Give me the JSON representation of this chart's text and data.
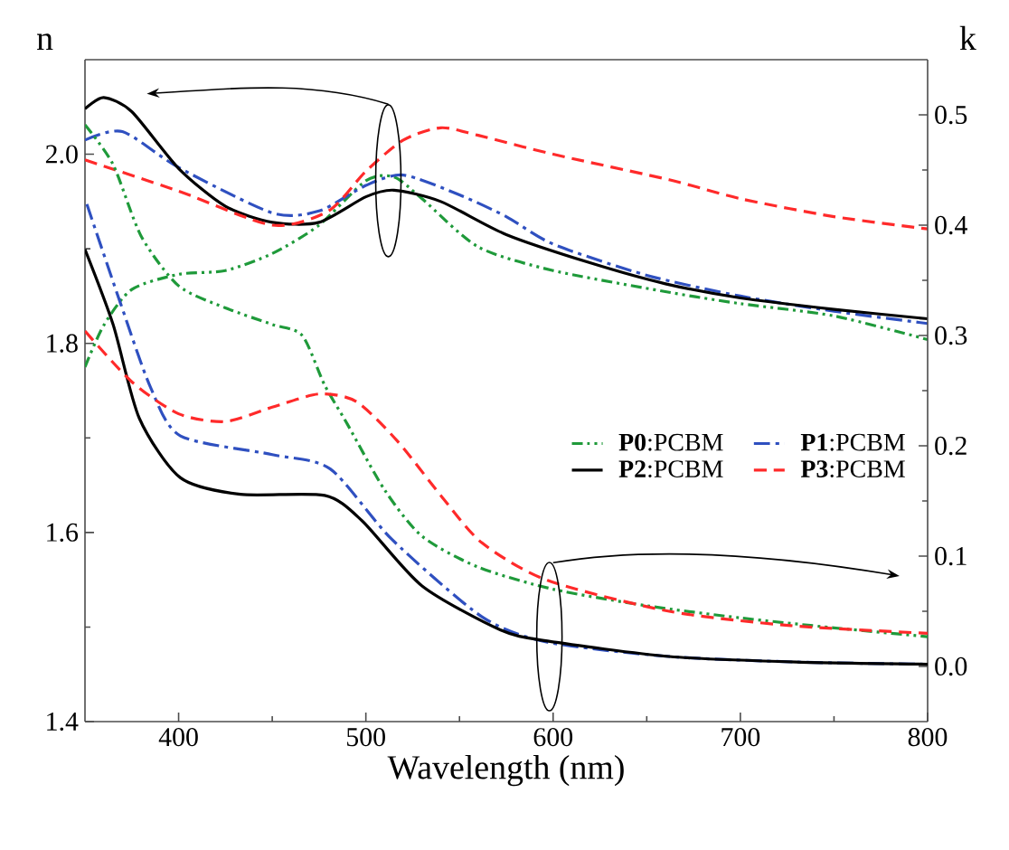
{
  "chart_data": {
    "type": "line",
    "xlabel": "Wavelength (nm)",
    "ylabel": "n",
    "y2label": "k",
    "xlim": [
      350,
      800
    ],
    "xticks": [
      400,
      500,
      600,
      700,
      800
    ],
    "ylim": [
      1.4,
      2.1
    ],
    "yticks": [
      {
        "value": 1.4,
        "label": "1.4"
      },
      {
        "value": 1.6,
        "label": "1.6"
      },
      {
        "value": 1.8,
        "label": "1.8"
      },
      {
        "value": 2.0,
        "label": "2.0"
      }
    ],
    "y2lim": [
      -0.05,
      0.55
    ],
    "y2ticks": [
      {
        "value": 0.0,
        "label": "0.0"
      },
      {
        "value": 0.1,
        "label": "0.1"
      },
      {
        "value": 0.2,
        "label": "0.2"
      },
      {
        "value": 0.3,
        "label": "0.3"
      },
      {
        "value": 0.4,
        "label": "0.4"
      },
      {
        "value": 0.5,
        "label": "0.5"
      }
    ],
    "legend": "right",
    "grid": false,
    "marker": "none",
    "series": [
      {
        "name": "**P0**:PCBM",
        "color": "#1f9a3a",
        "line_style": "dashdotdot",
        "x": [
          350,
          360,
          375,
          400,
          425,
          450,
          475,
          500,
          515,
          530,
          560,
          600,
          662,
          700,
          750,
          800
        ],
        "values": [
          1.775,
          1.819,
          1.857,
          1.873,
          1.877,
          1.895,
          1.925,
          1.972,
          1.976,
          1.953,
          1.902,
          1.877,
          1.854,
          1.842,
          1.829,
          1.804
        ]
      },
      {
        "name": "**P1**:PCBM",
        "color": "#2f50c0",
        "line_style": "dashdot",
        "x": [
          350,
          370,
          400,
          450,
          475,
          500,
          520,
          550,
          575,
          600,
          650,
          700,
          750,
          800
        ],
        "values": [
          2.015,
          2.024,
          1.986,
          1.938,
          1.94,
          1.967,
          1.978,
          1.957,
          1.934,
          1.905,
          1.872,
          1.85,
          1.834,
          1.821
        ]
      },
      {
        "name": "**P2**:PCBM",
        "color": "#000000",
        "line_style": "solid",
        "x": [
          350,
          360,
          375,
          400,
          425,
          450,
          475,
          500,
          515,
          540,
          575,
          620,
          660,
          700,
          750,
          800
        ],
        "values": [
          2.048,
          2.06,
          2.045,
          1.985,
          1.945,
          1.928,
          1.928,
          1.955,
          1.962,
          1.95,
          1.915,
          1.885,
          1.863,
          1.848,
          1.836,
          1.826
        ]
      },
      {
        "name": "**P3**:PCBM",
        "color": "#ff2a2a",
        "line_style": "dashed",
        "x": [
          350,
          400,
          450,
          480,
          500,
          520,
          540,
          560,
          600,
          662,
          700,
          750,
          800
        ],
        "values": [
          1.994,
          1.961,
          1.925,
          1.94,
          1.982,
          2.015,
          2.028,
          2.02,
          2.0,
          1.973,
          1.953,
          1.934,
          1.921
        ]
      },
      {
        "color": "#1f9a3a",
        "line_style": "dashdotdot",
        "axis": "y2",
        "x": [
          350,
          365,
          380,
          400,
          425,
          450,
          466,
          478,
          490,
          510,
          530,
          560,
          600,
          650,
          700,
          750,
          800
        ],
        "values": [
          0.491,
          0.455,
          0.39,
          0.345,
          0.325,
          0.31,
          0.3,
          0.255,
          0.22,
          0.16,
          0.118,
          0.09,
          0.07,
          0.055,
          0.044,
          0.035,
          0.027
        ]
      },
      {
        "color": "#2f50c0",
        "line_style": "dashdot",
        "axis": "y2",
        "x": [
          351,
          369,
          385,
          401,
          450,
          481,
          514,
          562,
          597,
          662,
          730,
          800
        ],
        "values": [
          0.419,
          0.329,
          0.253,
          0.209,
          0.192,
          0.179,
          0.115,
          0.045,
          0.022,
          0.009,
          0.004,
          0.002
        ]
      },
      {
        "color": "#000000",
        "line_style": "solid",
        "axis": "y2",
        "x": [
          350,
          365,
          379,
          401,
          433,
          478,
          498,
          530,
          572,
          597,
          662,
          730,
          800
        ],
        "values": [
          0.378,
          0.31,
          0.225,
          0.171,
          0.156,
          0.155,
          0.132,
          0.073,
          0.033,
          0.023,
          0.009,
          0.004,
          0.002
        ]
      },
      {
        "color": "#ff2a2a",
        "line_style": "dashed",
        "axis": "y2",
        "x": [
          350,
          375,
          400,
          425,
          450,
          475,
          495,
          517,
          540,
          562,
          597,
          662,
          727,
          800
        ],
        "values": [
          0.304,
          0.258,
          0.229,
          0.222,
          0.235,
          0.247,
          0.24,
          0.204,
          0.155,
          0.112,
          0.078,
          0.05,
          0.037,
          0.03
        ]
      }
    ]
  }
}
